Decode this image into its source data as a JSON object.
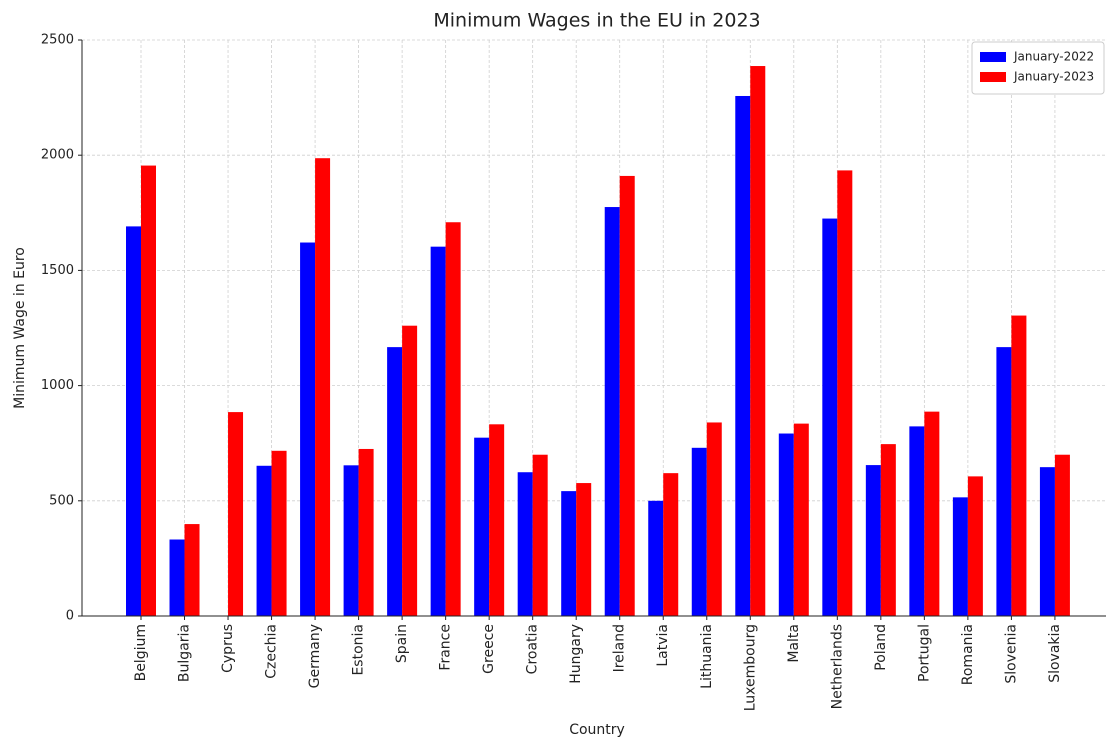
{
  "chart_data": {
    "type": "bar",
    "title": "Minimum Wages in the EU in 2023",
    "x_label": "Country",
    "y_label": "Minimum Wage in Euro",
    "categories": [
      "Belgium",
      "Bulgaria",
      "Cyprus",
      "Czechia",
      "Germany",
      "Estonia",
      "Spain",
      "France",
      "Greece",
      "Croatia",
      "Hungary",
      "Ireland",
      "Latvia",
      "Lithuania",
      "Luxembourg",
      "Malta",
      "Netherlands",
      "Poland",
      "Portugal",
      "Romania",
      "Slovenia",
      "Slovakia"
    ],
    "series": [
      {
        "name": "January-2022",
        "color": "#0000ff",
        "values": [
          1691,
          332,
          0,
          652,
          1621,
          654,
          1167,
          1603,
          774,
          624,
          542,
          1775,
          500,
          730,
          2257,
          792,
          1725,
          655,
          823,
          515,
          1167,
          646
        ]
      },
      {
        "name": "January-2023",
        "color": "#ff0000",
        "values": [
          1955,
          399,
          885,
          717,
          1987,
          725,
          1260,
          1709,
          832,
          700,
          577,
          1910,
          620,
          840,
          2387,
          835,
          1934,
          746,
          887,
          606,
          1304,
          700
        ]
      }
    ],
    "ylim": [
      0,
      2500
    ],
    "yticks": [
      0,
      500,
      1000,
      1500,
      2000,
      2500
    ],
    "grid": true,
    "legend": "upper right"
  }
}
